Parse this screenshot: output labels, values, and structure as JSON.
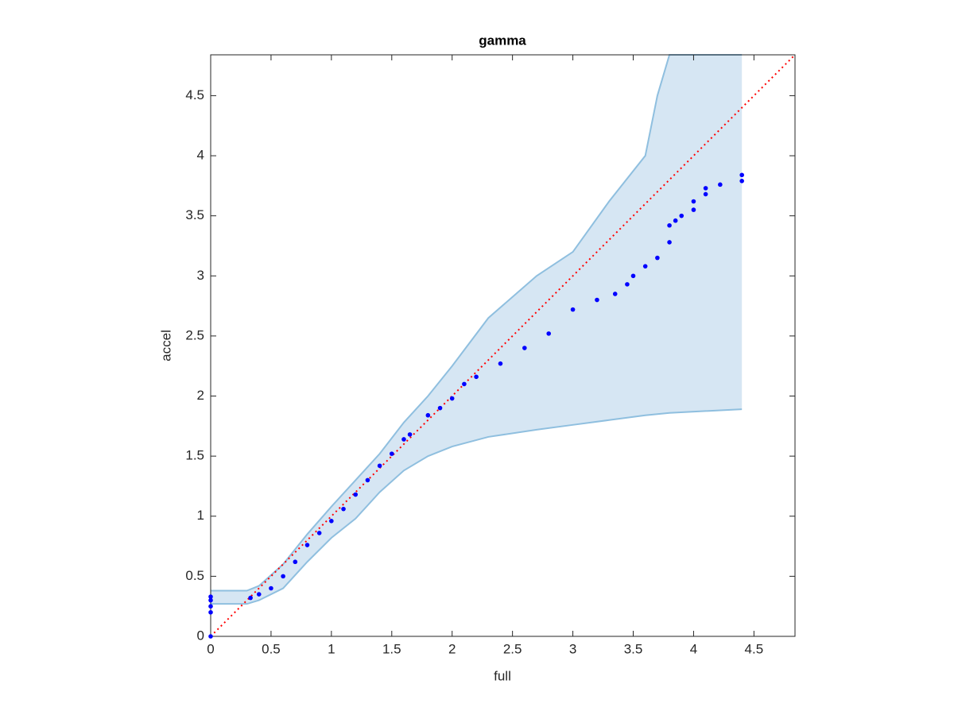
{
  "chart_data": {
    "type": "scatter",
    "title": "gamma",
    "x_label": "full",
    "y_label": "accel",
    "x": [
      0,
      0,
      0,
      0,
      0,
      0.33,
      0.4,
      0.5,
      0.6,
      0.7,
      0.8,
      0.9,
      1.0,
      1.1,
      1.2,
      1.3,
      1.4,
      1.5,
      1.6,
      1.65,
      1.8,
      1.9,
      2.0,
      2.1,
      2.2,
      2.4,
      2.6,
      2.8,
      3.0,
      3.2,
      3.35,
      3.45,
      3.5,
      3.6,
      3.7,
      3.8,
      3.8,
      3.85,
      3.9,
      4.0,
      4.0,
      4.1,
      4.1,
      4.22,
      4.4,
      4.4
    ],
    "y": [
      0,
      0.2,
      0.25,
      0.3,
      0.33,
      0.32,
      0.35,
      0.4,
      0.5,
      0.62,
      0.76,
      0.86,
      0.96,
      1.06,
      1.18,
      1.3,
      1.42,
      1.52,
      1.64,
      1.68,
      1.84,
      1.9,
      1.98,
      2.1,
      2.16,
      2.27,
      2.4,
      2.52,
      2.72,
      2.8,
      2.85,
      2.93,
      3.0,
      3.08,
      3.15,
      3.28,
      3.42,
      3.46,
      3.5,
      3.55,
      3.62,
      3.68,
      3.73,
      3.76,
      3.79,
      3.84
    ],
    "color": "#0000ff",
    "band_x": [
      0,
      0.3,
      0.4,
      0.6,
      0.8,
      1.0,
      1.2,
      1.4,
      1.6,
      1.8,
      2.0,
      2.3,
      2.7,
      3.0,
      3.3,
      3.6,
      3.7,
      3.8,
      4.4
    ],
    "band_upper": [
      0.38,
      0.38,
      0.42,
      0.6,
      0.85,
      1.08,
      1.3,
      1.52,
      1.78,
      2.0,
      2.25,
      2.65,
      3.0,
      3.2,
      3.62,
      4.0,
      4.5,
      4.84,
      4.84
    ],
    "band_lower": [
      0.27,
      0.27,
      0.3,
      0.4,
      0.62,
      0.82,
      0.98,
      1.2,
      1.38,
      1.5,
      1.58,
      1.66,
      1.72,
      1.76,
      1.8,
      1.84,
      1.85,
      1.86,
      1.89
    ],
    "band_color": "#d6e6f3",
    "band_edge_color": "#8fbfdf",
    "reference_color": "#ff0000",
    "xlim": [
      0,
      4.84
    ],
    "ylim": [
      0,
      4.84
    ],
    "xticks": [
      0,
      0.5,
      1,
      1.5,
      2,
      2.5,
      3,
      3.5,
      4,
      4.5
    ],
    "yticks": [
      0,
      0.5,
      1,
      1.5,
      2,
      2.5,
      3,
      3.5,
      4,
      4.5
    ]
  }
}
